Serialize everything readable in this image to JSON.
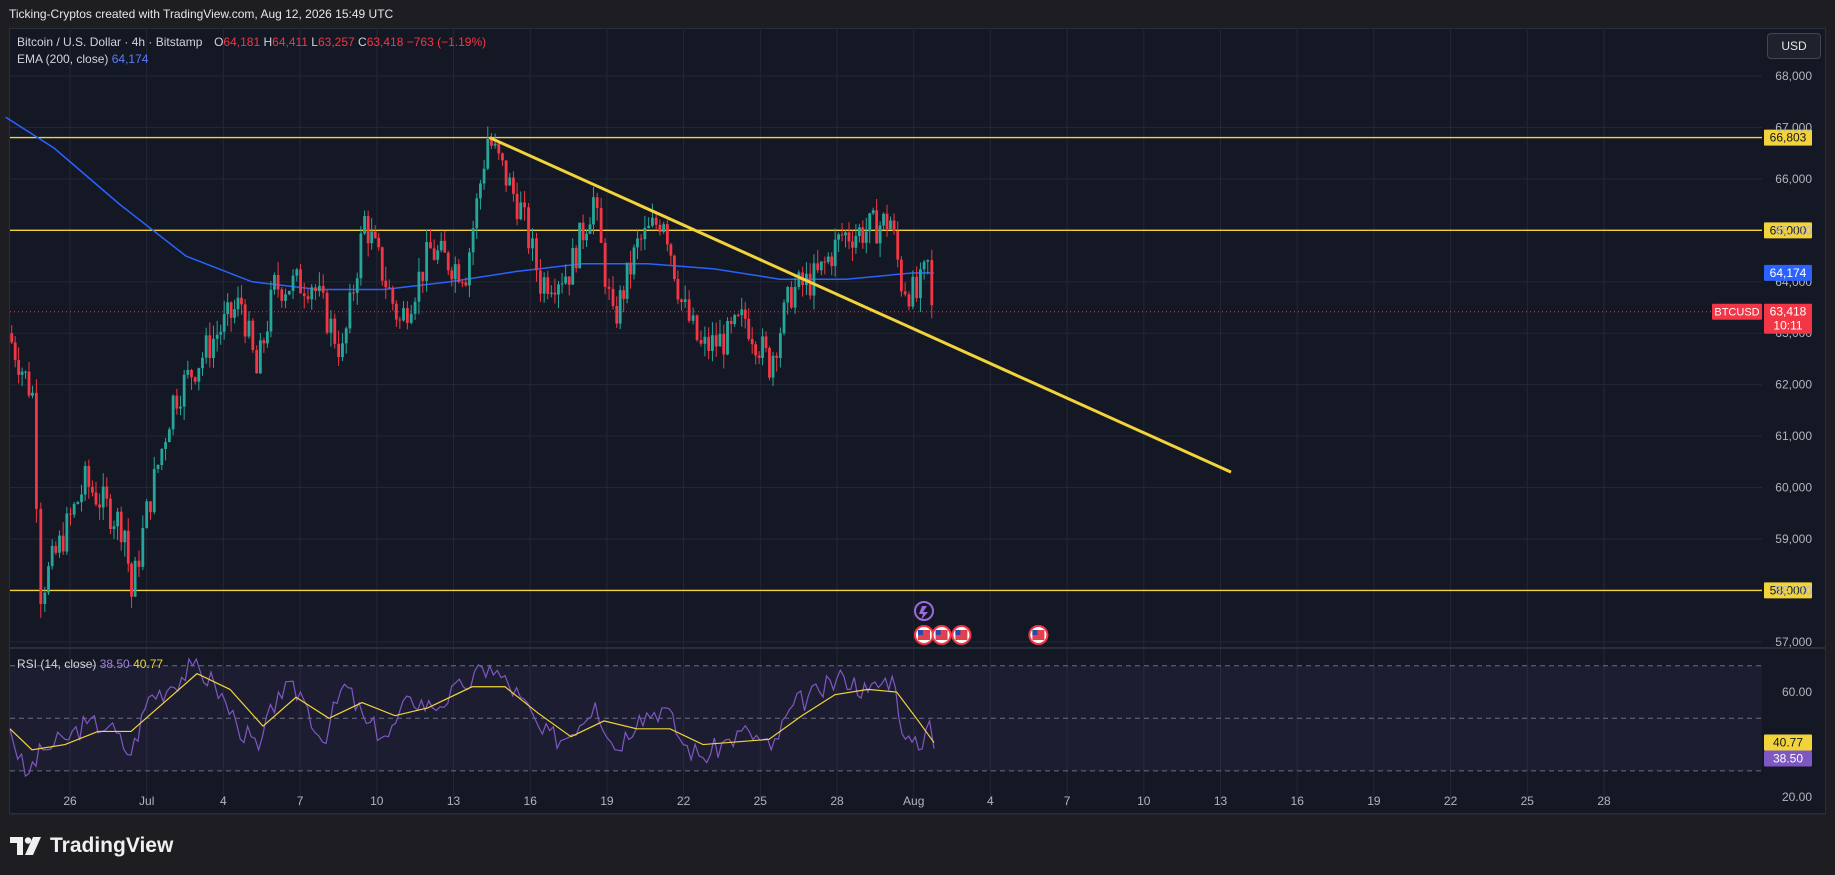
{
  "header": {
    "caption": "Ticking-Cryptos created with TradingView.com, Aug 12, 2026 15:49 UTC"
  },
  "legend": {
    "symbol": "Bitcoin / U.S. Dollar · 4h · Bitstamp",
    "o_label": "O",
    "o_value": "64,181",
    "h_label": "H",
    "h_value": "64,411",
    "l_label": "L",
    "l_value": "63,257",
    "c_label": "C",
    "c_value": "63,418",
    "change": "−763 (−1.19%)",
    "ema_label": "EMA (200, close)",
    "ema_value": "64,174"
  },
  "currency_button": "USD",
  "rsi_legend": {
    "label": "RSI (14, close)",
    "value": "38.50",
    "ma_value": "40.77"
  },
  "footer": {
    "brand": "TradingView"
  },
  "colors": {
    "up": "#26a69a",
    "down": "#f23645",
    "ema": "#2962ff",
    "level": "#f2d43a",
    "rsi": "#7e57c2",
    "rsi_ma": "#f2d43a"
  },
  "chart_data": {
    "type": "candlestick",
    "timeframe": "4h",
    "x_ticks": [
      "26",
      "Jul",
      "4",
      "7",
      "10",
      "13",
      "16",
      "19",
      "22",
      "25",
      "28",
      "Aug",
      "4",
      "7",
      "10",
      "13",
      "16",
      "19",
      "22",
      "25",
      "28"
    ],
    "y_ticks": [
      "68,000",
      "67,000",
      "66,000",
      "65,000",
      "64,000",
      "63,000",
      "62,000",
      "61,000",
      "60,000",
      "59,000",
      "58,000",
      "57,000"
    ],
    "ylim": [
      56900,
      68700
    ],
    "horizontal_levels": [
      {
        "value": 66803,
        "label": "66,803"
      },
      {
        "value": 65000,
        "label": "65,000"
      },
      {
        "value": 58000,
        "label": "58,000"
      }
    ],
    "ema_200_last": {
      "value": 64174,
      "label": "64,174"
    },
    "last_price": {
      "symbol": "BTCUSD",
      "value": 63418,
      "label": "63,418",
      "countdown": "10:11"
    },
    "trendline": {
      "from": {
        "day": 21.8,
        "price": 66803
      },
      "to": {
        "day": 55.5,
        "price": 60300
      }
    },
    "key_points": [
      {
        "day": 0,
        "price": 63000
      },
      {
        "day": 1.1,
        "price": 61800
      },
      {
        "day": 1.5,
        "price": 58000
      },
      {
        "day": 3.5,
        "price": 60100
      },
      {
        "day": 5.3,
        "price": 59200
      },
      {
        "day": 5.6,
        "price": 57900
      },
      {
        "day": 6.3,
        "price": 59500
      },
      {
        "day": 7.5,
        "price": 61700
      },
      {
        "day": 9.5,
        "price": 63000
      },
      {
        "day": 10.6,
        "price": 63600
      },
      {
        "day": 11.3,
        "price": 62200
      },
      {
        "day": 12.1,
        "price": 63900
      },
      {
        "day": 13.8,
        "price": 64000
      },
      {
        "day": 15.2,
        "price": 62600
      },
      {
        "day": 16.2,
        "price": 65200
      },
      {
        "day": 17.8,
        "price": 63200
      },
      {
        "day": 19.2,
        "price": 64600
      },
      {
        "day": 20.8,
        "price": 64200
      },
      {
        "day": 21.8,
        "price": 66803
      },
      {
        "day": 23.3,
        "price": 65400
      },
      {
        "day": 24.2,
        "price": 64000
      },
      {
        "day": 25.5,
        "price": 64200
      },
      {
        "day": 26.6,
        "price": 65600
      },
      {
        "day": 27.5,
        "price": 63200
      },
      {
        "day": 28.6,
        "price": 64700
      },
      {
        "day": 29.8,
        "price": 65300
      },
      {
        "day": 30.6,
        "price": 63600
      },
      {
        "day": 31.5,
        "price": 62700
      },
      {
        "day": 32.7,
        "price": 62900
      },
      {
        "day": 33.5,
        "price": 63300
      },
      {
        "day": 34.6,
        "price": 62400
      },
      {
        "day": 35.6,
        "price": 63800
      },
      {
        "day": 36.8,
        "price": 64100
      },
      {
        "day": 37.9,
        "price": 64900
      },
      {
        "day": 39.0,
        "price": 65000
      },
      {
        "day": 40.1,
        "price": 65200
      },
      {
        "day": 40.6,
        "price": 64000
      },
      {
        "day": 41.3,
        "price": 63700
      },
      {
        "day": 41.8,
        "price": 64300
      },
      {
        "day": 42.0,
        "price": 63418
      }
    ],
    "ema_points": [
      {
        "day": -0.2,
        "price": 67200
      },
      {
        "day": 2,
        "price": 66600
      },
      {
        "day": 5,
        "price": 65500
      },
      {
        "day": 8,
        "price": 64500
      },
      {
        "day": 11,
        "price": 64000
      },
      {
        "day": 14,
        "price": 63850
      },
      {
        "day": 17,
        "price": 63850
      },
      {
        "day": 20,
        "price": 64000
      },
      {
        "day": 23,
        "price": 64200
      },
      {
        "day": 26,
        "price": 64350
      },
      {
        "day": 29,
        "price": 64350
      },
      {
        "day": 32,
        "price": 64250
      },
      {
        "day": 35,
        "price": 64050
      },
      {
        "day": 38,
        "price": 64050
      },
      {
        "day": 41,
        "price": 64170
      },
      {
        "day": 42,
        "price": 64174
      }
    ],
    "rsi": {
      "y_ticks": [
        "60.00",
        "40.00",
        "20.00"
      ],
      "ylim": [
        17,
        76
      ],
      "bands": [
        70,
        50,
        30
      ],
      "last": {
        "value": 38.5,
        "label": "38.50"
      },
      "ma_last": {
        "value": 40.77,
        "label": "40.77"
      },
      "points": [
        {
          "day": 0,
          "price": 46
        },
        {
          "day": 0.7,
          "price": 28
        },
        {
          "day": 1.5,
          "price": 38
        },
        {
          "day": 2.5,
          "price": 42
        },
        {
          "day": 3.5,
          "price": 48
        },
        {
          "day": 4.5,
          "price": 47
        },
        {
          "day": 5.5,
          "price": 36
        },
        {
          "day": 6.3,
          "price": 58
        },
        {
          "day": 7.3,
          "price": 62
        },
        {
          "day": 8.3,
          "price": 70
        },
        {
          "day": 9.3,
          "price": 63
        },
        {
          "day": 10.3,
          "price": 48
        },
        {
          "day": 11.3,
          "price": 38
        },
        {
          "day": 12.2,
          "price": 60
        },
        {
          "day": 13.2,
          "price": 60
        },
        {
          "day": 14.2,
          "price": 41
        },
        {
          "day": 15.2,
          "price": 63
        },
        {
          "day": 16.2,
          "price": 48
        },
        {
          "day": 17.2,
          "price": 43
        },
        {
          "day": 18.2,
          "price": 58
        },
        {
          "day": 19.2,
          "price": 54
        },
        {
          "day": 20.6,
          "price": 62
        },
        {
          "day": 21.8,
          "price": 70
        },
        {
          "day": 23.2,
          "price": 58
        },
        {
          "day": 24.2,
          "price": 44
        },
        {
          "day": 25.2,
          "price": 42
        },
        {
          "day": 26.6,
          "price": 56
        },
        {
          "day": 27.5,
          "price": 38
        },
        {
          "day": 28.6,
          "price": 51
        },
        {
          "day": 29.8,
          "price": 54
        },
        {
          "day": 30.6,
          "price": 40
        },
        {
          "day": 31.5,
          "price": 35
        },
        {
          "day": 32.7,
          "price": 42
        },
        {
          "day": 33.6,
          "price": 45
        },
        {
          "day": 34.6,
          "price": 38
        },
        {
          "day": 35.6,
          "price": 55
        },
        {
          "day": 36.8,
          "price": 60
        },
        {
          "day": 37.9,
          "price": 66
        },
        {
          "day": 39.0,
          "price": 60
        },
        {
          "day": 40.1,
          "price": 66
        },
        {
          "day": 40.7,
          "price": 42
        },
        {
          "day": 41.3,
          "price": 38
        },
        {
          "day": 41.8,
          "price": 49
        },
        {
          "day": 42.0,
          "price": 38.5
        }
      ],
      "ma_points": [
        {
          "day": 0,
          "price": 46
        },
        {
          "day": 1,
          "price": 38
        },
        {
          "day": 2.5,
          "price": 40
        },
        {
          "day": 4,
          "price": 45
        },
        {
          "day": 5.5,
          "price": 45
        },
        {
          "day": 7,
          "price": 56
        },
        {
          "day": 8.5,
          "price": 67
        },
        {
          "day": 10,
          "price": 61
        },
        {
          "day": 11.5,
          "price": 47
        },
        {
          "day": 13,
          "price": 58
        },
        {
          "day": 14.5,
          "price": 50
        },
        {
          "day": 16,
          "price": 56
        },
        {
          "day": 17.5,
          "price": 51
        },
        {
          "day": 19,
          "price": 54
        },
        {
          "day": 21,
          "price": 62
        },
        {
          "day": 22.5,
          "price": 62
        },
        {
          "day": 24,
          "price": 52
        },
        {
          "day": 25.5,
          "price": 43
        },
        {
          "day": 27,
          "price": 49
        },
        {
          "day": 28.5,
          "price": 46
        },
        {
          "day": 30,
          "price": 46
        },
        {
          "day": 31.5,
          "price": 40
        },
        {
          "day": 33,
          "price": 41
        },
        {
          "day": 34.5,
          "price": 42
        },
        {
          "day": 36,
          "price": 51
        },
        {
          "day": 37.5,
          "price": 59
        },
        {
          "day": 39,
          "price": 61
        },
        {
          "day": 40.3,
          "price": 60
        },
        {
          "day": 41.2,
          "price": 50
        },
        {
          "day": 42,
          "price": 40.77
        }
      ]
    },
    "event_markers": [
      {
        "day": 42.0,
        "icon": "us-flag-icon"
      },
      {
        "day": 42.8,
        "icon": "us-flag-icon"
      },
      {
        "day": 43.7,
        "icon": "us-flag-icon"
      },
      {
        "day": 47.2,
        "icon": "us-flag-icon"
      }
    ]
  }
}
